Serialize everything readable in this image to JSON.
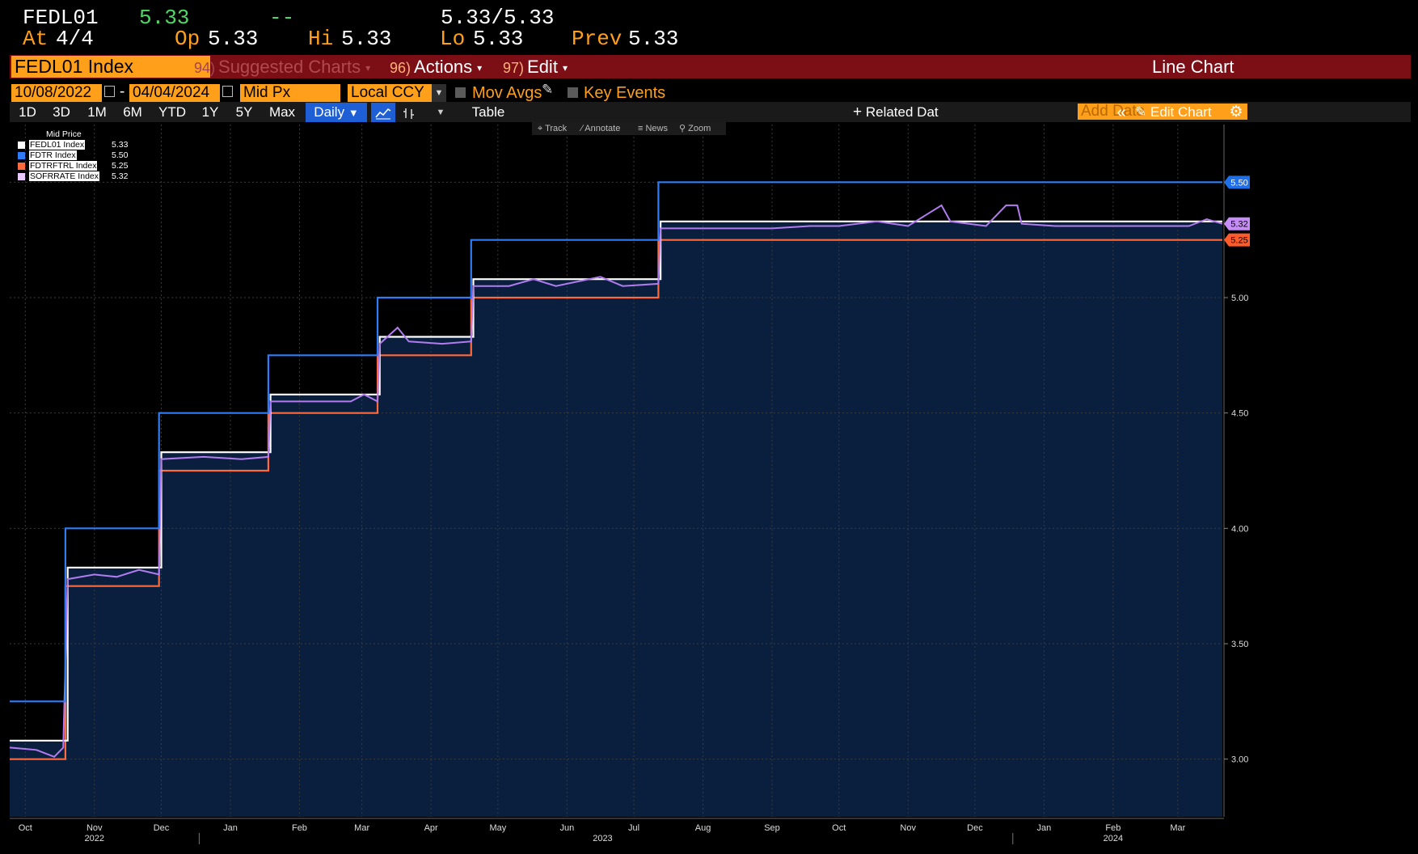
{
  "quote": {
    "ticker": "FEDL01",
    "last": "5.33",
    "change": "--",
    "bid_ask": "5.33/5.33",
    "at_label": "At",
    "at_value": "4/4",
    "open_label": "Op",
    "open_value": "5.33",
    "high_label": "Hi",
    "high_value": "5.33",
    "low_label": "Lo",
    "low_value": "5.33",
    "prev_label": "Prev",
    "prev_value": "5.33"
  },
  "titlebar": {
    "security": "FEDL01 Index",
    "suggested_num": "94)",
    "suggested_label": "Suggested Charts",
    "actions_num": "96)",
    "actions_label": "Actions",
    "edit_num": "97)",
    "edit_label": "Edit",
    "chart_type": "Line Chart"
  },
  "settings": {
    "start_date": "10/08/2022",
    "date_sep": "-",
    "end_date": "04/04/2024",
    "field": "Mid Px",
    "currency": "Local CCY",
    "mov_avgs": "Mov Avgs",
    "key_events": "Key Events"
  },
  "toolbar": {
    "periods": [
      "1D",
      "3D",
      "1M",
      "6M",
      "YTD",
      "1Y",
      "5Y",
      "Max"
    ],
    "frequency": "Daily",
    "table": "Table",
    "related": "Related Dat",
    "add_data_placeholder": "Add Data",
    "edit_chart": "Edit Chart"
  },
  "chart_tools": {
    "track": "Track",
    "annotate": "Annotate",
    "news": "News",
    "zoom": "Zoom"
  },
  "legend": {
    "header": "Mid Price",
    "entries": [
      {
        "name": "FEDL01 Index",
        "value": "5.33",
        "color": "#ffffff"
      },
      {
        "name": "FDTR Index",
        "value": "5.50",
        "color": "#2f7cf6"
      },
      {
        "name": "FDTRFTRL Index",
        "value": "5.25",
        "color": "#ff6a3d"
      },
      {
        "name": "SOFRRATE Index",
        "value": "5.32",
        "color": "#e9c8ff"
      }
    ]
  },
  "colors": {
    "background": "#000000",
    "plot_fill": "#0a1f3d",
    "fedl01": "#ffffff",
    "fdtr": "#2f7cf6",
    "fdtrftrl": "#ff6a3d",
    "sofr": "#b27cf0",
    "accent": "#ff9f1a",
    "titlebar": "#7c0e16"
  },
  "chart_data": {
    "type": "line",
    "x_type": "date",
    "xlim": [
      "2022-10-08",
      "2024-04-04"
    ],
    "ylim": [
      2.75,
      5.75
    ],
    "y_ticks": [
      3.0,
      3.5,
      4.0,
      4.5,
      5.0,
      5.5
    ],
    "y_tick_labels": [
      "3.00",
      "3.50",
      "4.00",
      "4.50",
      "5.00",
      "5.50"
    ],
    "x_ticks": [
      {
        "date": "2022-10-15",
        "label": "Oct"
      },
      {
        "date": "2022-11-15",
        "label": "Nov"
      },
      {
        "date": "2022-12-15",
        "label": "Dec"
      },
      {
        "date": "2023-01-15",
        "label": "Jan"
      },
      {
        "date": "2023-02-15",
        "label": "Feb"
      },
      {
        "date": "2023-03-15",
        "label": "Mar"
      },
      {
        "date": "2023-04-15",
        "label": "Apr"
      },
      {
        "date": "2023-05-15",
        "label": "May"
      },
      {
        "date": "2023-06-15",
        "label": "Jun"
      },
      {
        "date": "2023-07-15",
        "label": "Jul"
      },
      {
        "date": "2023-08-15",
        "label": "Aug"
      },
      {
        "date": "2023-09-15",
        "label": "Sep"
      },
      {
        "date": "2023-10-15",
        "label": "Oct"
      },
      {
        "date": "2023-11-15",
        "label": "Nov"
      },
      {
        "date": "2023-12-15",
        "label": "Dec"
      },
      {
        "date": "2024-01-15",
        "label": "Jan"
      },
      {
        "date": "2024-02-15",
        "label": "Feb"
      },
      {
        "date": "2024-03-15",
        "label": "Mar"
      }
    ],
    "year_labels": [
      {
        "date": "2022-11-15",
        "label": "2022"
      },
      {
        "date": "2023-07-01",
        "label": "2023"
      },
      {
        "date": "2024-02-15",
        "label": "2024"
      }
    ],
    "grid": true,
    "legend_position": "top-left",
    "last_value_tags": [
      {
        "series": "FDTR Index",
        "value": 5.5,
        "label": "5.50"
      },
      {
        "series": "SOFRRATE Index",
        "value": 5.32,
        "label": "5.32"
      },
      {
        "series": "FDTRFTRL Index",
        "value": 5.25,
        "label": "5.25"
      }
    ],
    "series": [
      {
        "name": "FDTR Index",
        "step": true,
        "points": [
          [
            "2022-10-08",
            3.25
          ],
          [
            "2022-11-02",
            4.0
          ],
          [
            "2022-12-14",
            4.5
          ],
          [
            "2023-02-01",
            4.75
          ],
          [
            "2023-03-22",
            5.0
          ],
          [
            "2023-05-03",
            5.25
          ],
          [
            "2023-07-26",
            5.5
          ],
          [
            "2024-04-04",
            5.5
          ]
        ]
      },
      {
        "name": "FEDL01 Index",
        "step": true,
        "points": [
          [
            "2022-10-08",
            3.08
          ],
          [
            "2022-11-03",
            3.83
          ],
          [
            "2022-12-15",
            4.33
          ],
          [
            "2023-02-02",
            4.58
          ],
          [
            "2023-03-23",
            4.83
          ],
          [
            "2023-05-04",
            5.08
          ],
          [
            "2023-07-27",
            5.33
          ],
          [
            "2024-04-04",
            5.33
          ]
        ]
      },
      {
        "name": "FDTRFTRL Index",
        "step": true,
        "points": [
          [
            "2022-10-08",
            3.0
          ],
          [
            "2022-11-02",
            3.75
          ],
          [
            "2022-12-14",
            4.25
          ],
          [
            "2023-02-01",
            4.5
          ],
          [
            "2023-03-22",
            4.75
          ],
          [
            "2023-05-03",
            5.0
          ],
          [
            "2023-07-26",
            5.25
          ],
          [
            "2024-04-04",
            5.25
          ]
        ]
      },
      {
        "name": "SOFRRATE Index",
        "step": false,
        "points": [
          [
            "2022-10-08",
            3.05
          ],
          [
            "2022-10-20",
            3.04
          ],
          [
            "2022-10-28",
            3.01
          ],
          [
            "2022-11-01",
            3.05
          ],
          [
            "2022-11-03",
            3.78
          ],
          [
            "2022-11-15",
            3.8
          ],
          [
            "2022-11-25",
            3.79
          ],
          [
            "2022-12-05",
            3.82
          ],
          [
            "2022-12-14",
            3.8
          ],
          [
            "2022-12-15",
            4.3
          ],
          [
            "2023-01-03",
            4.31
          ],
          [
            "2023-01-20",
            4.3
          ],
          [
            "2023-02-01",
            4.31
          ],
          [
            "2023-02-02",
            4.55
          ],
          [
            "2023-02-20",
            4.55
          ],
          [
            "2023-03-10",
            4.55
          ],
          [
            "2023-03-16",
            4.58
          ],
          [
            "2023-03-22",
            4.55
          ],
          [
            "2023-03-23",
            4.8
          ],
          [
            "2023-03-31",
            4.87
          ],
          [
            "2023-04-05",
            4.81
          ],
          [
            "2023-04-20",
            4.8
          ],
          [
            "2023-05-03",
            4.81
          ],
          [
            "2023-05-04",
            5.05
          ],
          [
            "2023-05-20",
            5.05
          ],
          [
            "2023-05-31",
            5.08
          ],
          [
            "2023-06-10",
            5.05
          ],
          [
            "2023-06-30",
            5.09
          ],
          [
            "2023-07-10",
            5.05
          ],
          [
            "2023-07-26",
            5.06
          ],
          [
            "2023-07-27",
            5.3
          ],
          [
            "2023-08-15",
            5.3
          ],
          [
            "2023-09-15",
            5.3
          ],
          [
            "2023-10-02",
            5.31
          ],
          [
            "2023-10-15",
            5.31
          ],
          [
            "2023-11-01",
            5.33
          ],
          [
            "2023-11-15",
            5.31
          ],
          [
            "2023-11-30",
            5.4
          ],
          [
            "2023-12-04",
            5.33
          ],
          [
            "2023-12-20",
            5.31
          ],
          [
            "2023-12-29",
            5.4
          ],
          [
            "2024-01-03",
            5.4
          ],
          [
            "2024-01-05",
            5.32
          ],
          [
            "2024-01-20",
            5.31
          ],
          [
            "2024-02-10",
            5.31
          ],
          [
            "2024-03-01",
            5.31
          ],
          [
            "2024-03-20",
            5.31
          ],
          [
            "2024-03-28",
            5.34
          ],
          [
            "2024-04-04",
            5.32
          ]
        ]
      }
    ]
  }
}
